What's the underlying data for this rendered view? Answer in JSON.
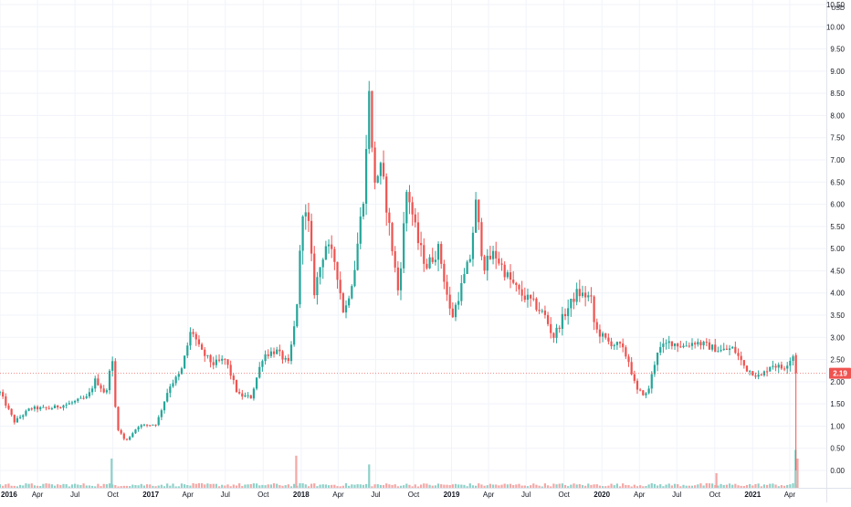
{
  "chart_data": {
    "type": "candlestick",
    "currency": "USD",
    "last_price_label": "2.19",
    "x_labels": [
      {
        "label": "2016",
        "date": "2016-01-01",
        "bold": true
      },
      {
        "label": "Apr",
        "date": "2016-04-01",
        "bold": false
      },
      {
        "label": "Jul",
        "date": "2016-07-01",
        "bold": false
      },
      {
        "label": "Oct",
        "date": "2016-10-01",
        "bold": false
      },
      {
        "label": "2017",
        "date": "2017-01-01",
        "bold": true
      },
      {
        "label": "Apr",
        "date": "2017-04-01",
        "bold": false
      },
      {
        "label": "Jul",
        "date": "2017-07-01",
        "bold": false
      },
      {
        "label": "Oct",
        "date": "2017-10-01",
        "bold": false
      },
      {
        "label": "2018",
        "date": "2018-01-01",
        "bold": true
      },
      {
        "label": "Apr",
        "date": "2018-04-01",
        "bold": false
      },
      {
        "label": "Jul",
        "date": "2018-07-01",
        "bold": false
      },
      {
        "label": "Oct",
        "date": "2018-10-01",
        "bold": false
      },
      {
        "label": "2019",
        "date": "2019-01-01",
        "bold": true
      },
      {
        "label": "Apr",
        "date": "2019-04-01",
        "bold": false
      },
      {
        "label": "Jul",
        "date": "2019-07-01",
        "bold": false
      },
      {
        "label": "Oct",
        "date": "2019-10-01",
        "bold": false
      },
      {
        "label": "2020",
        "date": "2020-01-01",
        "bold": true
      },
      {
        "label": "Apr",
        "date": "2020-04-01",
        "bold": false
      },
      {
        "label": "Jul",
        "date": "2020-07-01",
        "bold": false
      },
      {
        "label": "Oct",
        "date": "2020-10-01",
        "bold": false
      },
      {
        "label": "2021",
        "date": "2021-01-01",
        "bold": true
      },
      {
        "label": "Apr",
        "date": "2021-04-01",
        "bold": false
      }
    ],
    "y_ticks": [
      "10.50",
      "10.00",
      "9.50",
      "9.00",
      "8.50",
      "8.00",
      "7.50",
      "7.00",
      "6.50",
      "6.00",
      "5.50",
      "5.00",
      "4.50",
      "4.00",
      "3.50",
      "3.00",
      "2.50",
      "2.00",
      "1.50",
      "1.00",
      "0.50",
      "0.00"
    ],
    "x_range": [
      "2016-01-01",
      "2021-04-30"
    ],
    "y_range": [
      0,
      10.5
    ],
    "grid": true,
    "colors": {
      "up": "#26a69a",
      "down": "#ef5350",
      "vol_up": "#8fd1c9",
      "vol_down": "#f5a7a5",
      "grid": "#f0f3fa",
      "axis_text": "#131722",
      "price_line": "#ef5350"
    },
    "price_keypoints": [
      {
        "date": "2016-01-01",
        "close": 1.75
      },
      {
        "date": "2016-02-05",
        "close": 1.1
      },
      {
        "date": "2016-03-15",
        "close": 1.4
      },
      {
        "date": "2016-05-01",
        "close": 1.4
      },
      {
        "date": "2016-06-15",
        "close": 1.5
      },
      {
        "date": "2016-08-01",
        "close": 1.65
      },
      {
        "date": "2016-08-20",
        "close": 2.05
      },
      {
        "date": "2016-09-15",
        "close": 1.7
      },
      {
        "date": "2016-09-28",
        "close": 2.7
      },
      {
        "date": "2016-10-10",
        "close": 1.0
      },
      {
        "date": "2016-11-01",
        "close": 0.65
      },
      {
        "date": "2016-12-01",
        "close": 1.0
      },
      {
        "date": "2017-01-15",
        "close": 1.05
      },
      {
        "date": "2017-02-15",
        "close": 1.9
      },
      {
        "date": "2017-03-15",
        "close": 2.2
      },
      {
        "date": "2017-04-10",
        "close": 3.2
      },
      {
        "date": "2017-05-01",
        "close": 2.7
      },
      {
        "date": "2017-06-01",
        "close": 2.4
      },
      {
        "date": "2017-07-01",
        "close": 2.5
      },
      {
        "date": "2017-08-01",
        "close": 1.7
      },
      {
        "date": "2017-09-01",
        "close": 1.65
      },
      {
        "date": "2017-10-01",
        "close": 2.6
      },
      {
        "date": "2017-11-01",
        "close": 2.7
      },
      {
        "date": "2017-12-01",
        "close": 2.4
      },
      {
        "date": "2017-12-20",
        "close": 3.5
      },
      {
        "date": "2018-01-05",
        "close": 5.9
      },
      {
        "date": "2018-01-20",
        "close": 5.5
      },
      {
        "date": "2018-02-01",
        "close": 4.0
      },
      {
        "date": "2018-03-01",
        "close": 5.1
      },
      {
        "date": "2018-03-25",
        "close": 4.7
      },
      {
        "date": "2018-04-15",
        "close": 3.5
      },
      {
        "date": "2018-05-10",
        "close": 4.5
      },
      {
        "date": "2018-06-05",
        "close": 6.5
      },
      {
        "date": "2018-06-15",
        "close": 8.7
      },
      {
        "date": "2018-06-25",
        "close": 6.5
      },
      {
        "date": "2018-07-15",
        "close": 6.8
      },
      {
        "date": "2018-08-10",
        "close": 5.0
      },
      {
        "date": "2018-08-25",
        "close": 4.0
      },
      {
        "date": "2018-09-15",
        "close": 6.4
      },
      {
        "date": "2018-10-10",
        "close": 5.2
      },
      {
        "date": "2018-11-01",
        "close": 4.6
      },
      {
        "date": "2018-12-01",
        "close": 5.0
      },
      {
        "date": "2019-01-01",
        "close": 3.4
      },
      {
        "date": "2019-02-15",
        "close": 4.8
      },
      {
        "date": "2019-03-01",
        "close": 6.0
      },
      {
        "date": "2019-03-20",
        "close": 4.6
      },
      {
        "date": "2019-04-15",
        "close": 4.9
      },
      {
        "date": "2019-05-15",
        "close": 4.4
      },
      {
        "date": "2019-06-15",
        "close": 4.0
      },
      {
        "date": "2019-07-15",
        "close": 3.8
      },
      {
        "date": "2019-08-15",
        "close": 3.5
      },
      {
        "date": "2019-09-05",
        "close": 3.0
      },
      {
        "date": "2019-10-01",
        "close": 3.5
      },
      {
        "date": "2019-11-01",
        "close": 4.0
      },
      {
        "date": "2019-12-05",
        "close": 3.9
      },
      {
        "date": "2019-12-15",
        "close": 3.2
      },
      {
        "date": "2020-01-15",
        "close": 2.9
      },
      {
        "date": "2020-02-15",
        "close": 2.8
      },
      {
        "date": "2020-03-05",
        "close": 2.5
      },
      {
        "date": "2020-03-25",
        "close": 1.8
      },
      {
        "date": "2020-04-20",
        "close": 1.7
      },
      {
        "date": "2020-05-15",
        "close": 2.7
      },
      {
        "date": "2020-06-15",
        "close": 2.9
      },
      {
        "date": "2020-07-15",
        "close": 2.8
      },
      {
        "date": "2020-08-15",
        "close": 2.9
      },
      {
        "date": "2020-09-15",
        "close": 2.8
      },
      {
        "date": "2020-10-15",
        "close": 2.7
      },
      {
        "date": "2020-11-15",
        "close": 2.75
      },
      {
        "date": "2020-12-15",
        "close": 2.3
      },
      {
        "date": "2021-01-20",
        "close": 2.1
      },
      {
        "date": "2021-02-15",
        "close": 2.4
      },
      {
        "date": "2021-03-15",
        "close": 2.3
      },
      {
        "date": "2021-04-10",
        "close": 2.6
      },
      {
        "date": "2021-04-20",
        "close": 2.19
      }
    ],
    "volume_spikes": [
      {
        "date": "2016-09-28",
        "level": 1.0,
        "direction": "up"
      },
      {
        "date": "2017-12-20",
        "level": 1.1,
        "direction": "down"
      },
      {
        "date": "2018-06-15",
        "level": 0.8,
        "direction": "up"
      },
      {
        "date": "2020-10-05",
        "level": 0.5,
        "direction": "down"
      },
      {
        "date": "2021-04-15",
        "level": 1.3,
        "direction": "up"
      },
      {
        "date": "2021-04-20",
        "level": 1.0,
        "direction": "down"
      }
    ]
  }
}
